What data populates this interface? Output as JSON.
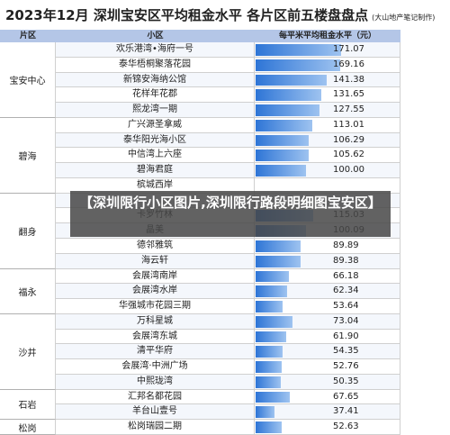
{
  "header": {
    "title": "2023年12月 深圳宝安区平均租金水平 各片区前五楼盘盘点",
    "note": "(大山地产笔记制作)"
  },
  "table": {
    "columns": [
      "片区",
      "小区",
      "每平米平均租金水平（元）"
    ],
    "groups": [
      {
        "district": "宝安中心",
        "rows": [
          {
            "name": "欢乐港湾•海府一号",
            "value": "171.07"
          },
          {
            "name": "泰华梧桐聚落花园",
            "value": "169.16"
          },
          {
            "name": "新锦安海纳公馆",
            "value": "141.38"
          },
          {
            "name": "花样年花郡",
            "value": "131.65"
          },
          {
            "name": "熙龙湾一期",
            "value": "127.55"
          }
        ]
      },
      {
        "district": "碧海",
        "rows": [
          {
            "name": "广兴源圣拿威",
            "value": "113.01"
          },
          {
            "name": "泰华阳光海小区",
            "value": "106.29"
          },
          {
            "name": "中信湾上六座",
            "value": "105.62"
          },
          {
            "name": "碧海君庭",
            "value": "100.00"
          },
          {
            "name": "槟城西岸",
            "value": null
          }
        ]
      },
      {
        "district": "翻身",
        "rows": [
          {
            "name": null,
            "value": null
          },
          {
            "name": "卡罗竹林",
            "value": "115.03"
          },
          {
            "name": "晶美",
            "value": "100.09"
          },
          {
            "name": "德邻雅筑",
            "value": "89.89"
          },
          {
            "name": "海云轩",
            "value": "89.38"
          }
        ]
      },
      {
        "district": "福永",
        "rows": [
          {
            "name": "会展湾南岸",
            "value": "66.18"
          },
          {
            "name": "会展湾水岸",
            "value": "62.34"
          },
          {
            "name": "华强城市花园三期",
            "value": "53.64"
          }
        ]
      },
      {
        "district": "沙井",
        "rows": [
          {
            "name": "万科星城",
            "value": "73.04"
          },
          {
            "name": "会展湾东城",
            "value": "61.90"
          },
          {
            "name": "清平华府",
            "value": "54.35"
          },
          {
            "name": "会展湾·中洲广场",
            "value": "52.76"
          },
          {
            "name": "中熙珑湾",
            "value": "50.35"
          }
        ]
      },
      {
        "district": "石岩",
        "rows": [
          {
            "name": "汇邦名都花园",
            "value": "67.65"
          },
          {
            "name": "羊台山壹号",
            "value": "37.41"
          }
        ]
      },
      {
        "district": "松岗",
        "rows": [
          {
            "name": "松岗瑞园二期",
            "value": "52.63"
          }
        ]
      }
    ]
  },
  "banner": "【深圳限行小区图片,深圳限行路段明细图宝安区】"
}
